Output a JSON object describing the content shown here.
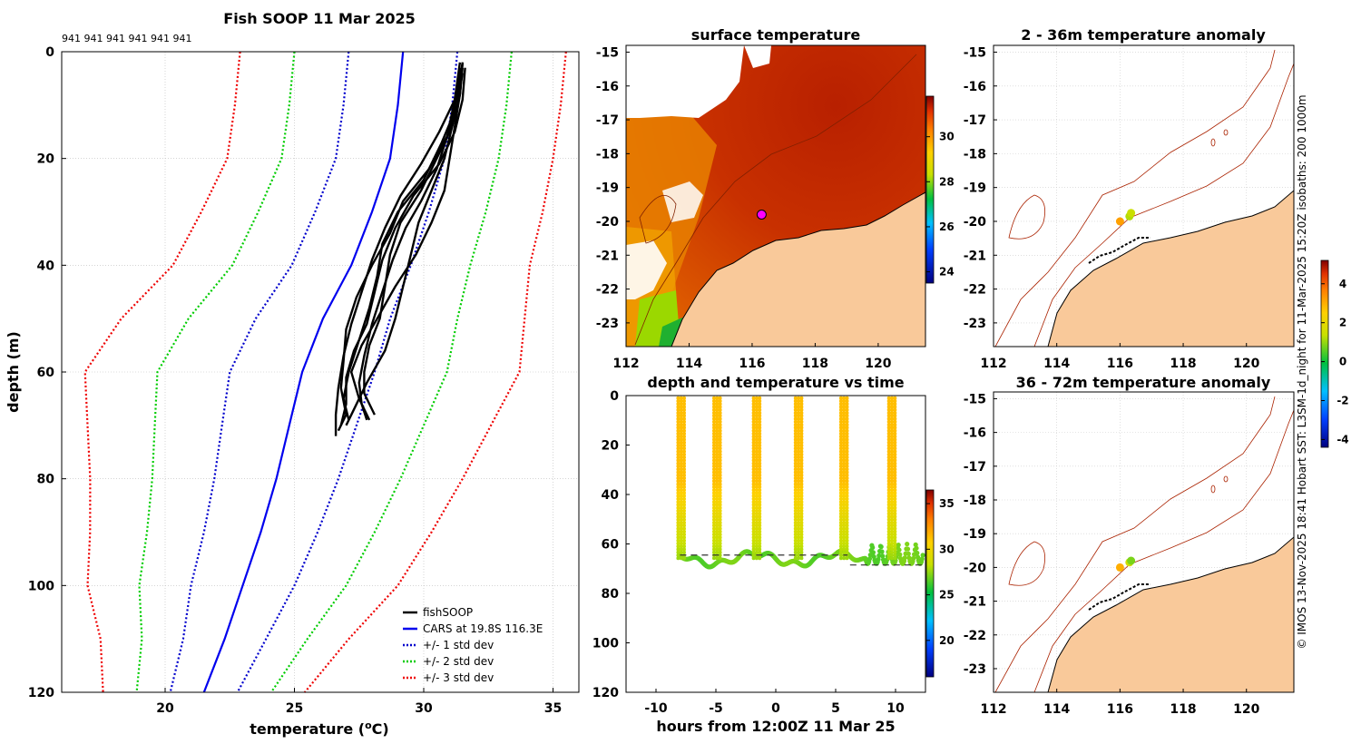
{
  "colors": {
    "fish": "#000000",
    "cars": "#0000ee",
    "std1": "#0000cc",
    "std2": "#00cc00",
    "std3": "#ee0000",
    "land": "#f9c99a",
    "coast": "#cc2200"
  },
  "chart_data": [
    {
      "type": "line",
      "id": "profile",
      "title": "Fish SOOP 11 Mar 2025",
      "top_note": "941 941 941 941 941 941",
      "xlabel": "temperature (",
      "xlabel_sup": "o",
      "xlabel_end": "C)",
      "ylabel": "depth (m)",
      "xlim": [
        16,
        36
      ],
      "ylim": [
        0,
        120
      ],
      "xticks": [
        "20",
        "25",
        "30",
        "35"
      ],
      "yticks": [
        "0",
        "20",
        "40",
        "60",
        "80",
        "100",
        "120"
      ],
      "grid": true,
      "legend_position": "bottom-right",
      "legend": [
        "fishSOOP",
        "CARS at 19.8S 116.3E",
        "+/- 1 std dev",
        "+/- 2 std dev",
        "+/- 3 std dev"
      ],
      "cars_mean": {
        "depth": [
          0,
          10,
          20,
          30,
          40,
          50,
          60,
          70,
          80,
          90,
          100,
          110,
          120
        ],
        "temp": [
          29.2,
          29.0,
          28.7,
          28.0,
          27.2,
          26.1,
          25.3,
          24.8,
          24.3,
          23.7,
          23.0,
          22.3,
          21.5
        ]
      },
      "cars_sd": {
        "depth": [
          0,
          10,
          20,
          30,
          40,
          50,
          60,
          70,
          80,
          90,
          100,
          110,
          120
        ],
        "temp": [
          2.1,
          2.1,
          2.1,
          2.2,
          2.3,
          2.6,
          2.8,
          2.6,
          2.4,
          2.2,
          2.0,
          1.6,
          1.3
        ]
      },
      "fish_casts": [
        {
          "depth": [
            2,
            8,
            15,
            22,
            28,
            34,
            40,
            46,
            52,
            58,
            63,
            68,
            71
          ],
          "temp": [
            31.5,
            31.3,
            31.0,
            30.2,
            29.2,
            28.7,
            28.0,
            27.4,
            27.0,
            26.9,
            26.8,
            27.0,
            26.7
          ]
        },
        {
          "depth": [
            3,
            8,
            14,
            20,
            26,
            32,
            38,
            44,
            50,
            56,
            62,
            67,
            70
          ],
          "temp": [
            31.5,
            31.4,
            31.1,
            30.8,
            30.3,
            29.8,
            29.5,
            29.2,
            28.9,
            28.5,
            27.8,
            27.3,
            27.0
          ]
        },
        {
          "depth": [
            2,
            9,
            16,
            22,
            28,
            33,
            39,
            45,
            51,
            57,
            62,
            66,
            69
          ],
          "temp": [
            31.4,
            31.2,
            30.9,
            30.5,
            29.9,
            29.3,
            28.8,
            28.4,
            28.0,
            27.7,
            27.5,
            27.6,
            27.8
          ]
        },
        {
          "depth": [
            4,
            10,
            17,
            24,
            30,
            36,
            42,
            48,
            54,
            60,
            65,
            69
          ],
          "temp": [
            31.5,
            31.3,
            30.7,
            30.0,
            29.0,
            28.4,
            28.2,
            27.9,
            27.5,
            27.1,
            26.9,
            27.1
          ]
        },
        {
          "depth": [
            3,
            9,
            15,
            21,
            27,
            33,
            39,
            45,
            51,
            56,
            61,
            66,
            70
          ],
          "temp": [
            31.6,
            31.5,
            31.2,
            30.6,
            29.6,
            28.9,
            28.4,
            28.1,
            27.8,
            27.3,
            27.0,
            27.0,
            26.8
          ]
        },
        {
          "depth": [
            2,
            8,
            14,
            20,
            26,
            32,
            38,
            44,
            50,
            55,
            60,
            65,
            69
          ],
          "temp": [
            31.5,
            31.4,
            31.2,
            31.0,
            30.8,
            30.3,
            29.7,
            28.9,
            28.2,
            27.6,
            27.2,
            27.5,
            27.9
          ]
        },
        {
          "depth": [
            3,
            9,
            15,
            21,
            27,
            33,
            39,
            45,
            51,
            57,
            63,
            68,
            72
          ],
          "temp": [
            31.4,
            31.2,
            30.6,
            29.9,
            29.1,
            28.5,
            28.0,
            27.6,
            27.2,
            26.9,
            26.7,
            26.6,
            26.6
          ]
        },
        {
          "depth": [
            2,
            8,
            14,
            20,
            26,
            32,
            38,
            44,
            50,
            55,
            60,
            64,
            68
          ],
          "temp": [
            31.5,
            31.4,
            31.1,
            30.5,
            29.9,
            29.1,
            28.7,
            28.5,
            28.3,
            27.9,
            27.7,
            27.7,
            28.1
          ]
        }
      ]
    },
    {
      "type": "heatmap",
      "id": "sst",
      "title": "surface temperature",
      "xlim": [
        112,
        121.5
      ],
      "ylim": [
        -23.7,
        -14.8
      ],
      "xticks": [
        "112",
        "114",
        "116",
        "118",
        "120"
      ],
      "yticks": [
        "-15",
        "-16",
        "-17",
        "-18",
        "-19",
        "-20",
        "-21",
        "-22",
        "-23"
      ],
      "colorbar": {
        "range": [
          23.5,
          31.8
        ],
        "ticks": [
          "24",
          "26",
          "28",
          "30"
        ]
      },
      "marker": {
        "lon": 116.3,
        "lat": -19.8
      }
    },
    {
      "type": "scatter",
      "id": "depthtime",
      "title": "depth and temperature vs time",
      "xlabel": "hours from 12:00Z 11 Mar 25",
      "xlim": [
        -12.5,
        12.5
      ],
      "ylim": [
        0,
        120
      ],
      "xticks": [
        "-10",
        "-5",
        "0",
        "5",
        "10"
      ],
      "yticks": [
        "0",
        "20",
        "40",
        "60",
        "80",
        "100",
        "120"
      ],
      "colorbar": {
        "range": [
          16,
          36.5
        ],
        "ticks": [
          "20",
          "25",
          "30",
          "35"
        ]
      },
      "casts_hours": [
        -7.9,
        -4.9,
        -1.6,
        1.9,
        5.7,
        9.7
      ],
      "bottom_lines": [
        {
          "x": [
            -8,
            6
          ],
          "depth": 64.5
        },
        {
          "x": [
            6.2,
            12.3
          ],
          "depth": 68.5
        }
      ]
    },
    {
      "type": "scatter",
      "id": "anom1",
      "title": "2 - 36m temperature anomaly",
      "xlim": [
        112,
        121.5
      ],
      "ylim": [
        -23.7,
        -14.8
      ],
      "xticks": [
        "112",
        "114",
        "116",
        "118",
        "120"
      ],
      "yticks": [
        "-15",
        "-16",
        "-17",
        "-18",
        "-19",
        "-20",
        "-21",
        "-22",
        "-23"
      ],
      "points": [
        {
          "lon": 116.0,
          "lat": -20.0,
          "anom": 3.2
        },
        {
          "lon": 116.3,
          "lat": -19.85,
          "anom": 1.2
        },
        {
          "lon": 116.35,
          "lat": -19.75,
          "anom": 1.4
        }
      ]
    },
    {
      "type": "scatter",
      "id": "anom2",
      "title": "36 - 72m temperature anomaly",
      "xlim": [
        112,
        121.5
      ],
      "ylim": [
        -23.7,
        -14.8
      ],
      "xticks": [
        "112",
        "114",
        "116",
        "118",
        "120"
      ],
      "yticks": [
        "-15",
        "-16",
        "-17",
        "-18",
        "-19",
        "-20",
        "-21",
        "-22",
        "-23"
      ],
      "points": [
        {
          "lon": 116.0,
          "lat": -20.0,
          "anom": 3.0
        },
        {
          "lon": 116.3,
          "lat": -19.85,
          "anom": 1.5
        },
        {
          "lon": 116.35,
          "lat": -19.8,
          "anom": 0.8
        }
      ]
    }
  ],
  "anomaly_colorbar": {
    "range": [
      -4.4,
      5.2
    ],
    "ticks": [
      "4",
      "2",
      "0",
      "-2",
      "-4"
    ]
  },
  "side_text": "© IMOS 13-Nov-2025 18:41 Hobart SST: L3SM-1d_night for 11-Mar-2025 15:20Z isobaths: 200  1000m"
}
